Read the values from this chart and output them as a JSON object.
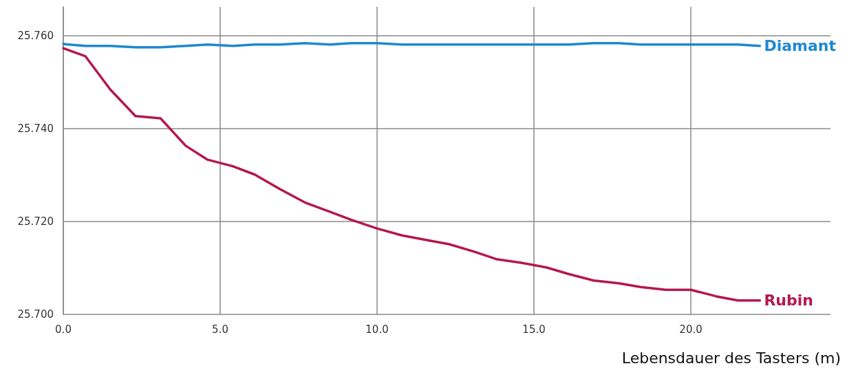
{
  "chart_data": {
    "type": "line",
    "xlabel": "Lebensdauer des Tasters (m)",
    "x": [
      0,
      0.7,
      1.5,
      2.3,
      3.1,
      3.9,
      4.6,
      5.4,
      6.1,
      6.9,
      7.7,
      8.5,
      9.2,
      10.0,
      10.8,
      11.5,
      12.3,
      13.1,
      13.8,
      14.6,
      15.4,
      16.1,
      16.9,
      17.7,
      18.4,
      19.2,
      20.0,
      20.8,
      21.5,
      22.2
    ],
    "series": [
      {
        "name": "Diamant",
        "color": "#1e88d0",
        "values": [
          25.7582,
          25.7578,
          25.7578,
          25.7575,
          25.7575,
          25.7578,
          25.7581,
          25.7578,
          25.7581,
          25.7581,
          25.7584,
          25.7581,
          25.7584,
          25.7584,
          25.7581,
          25.7581,
          25.7581,
          25.7581,
          25.7581,
          25.7581,
          25.7581,
          25.7581,
          25.7584,
          25.7584,
          25.7581,
          25.7581,
          25.7581,
          25.7581,
          25.7581,
          25.7578
        ]
      },
      {
        "name": "Rubin",
        "color": "#b5174f",
        "values": [
          25.7573,
          25.7556,
          25.7484,
          25.7427,
          25.7422,
          25.7363,
          25.7333,
          25.7319,
          25.7301,
          25.727,
          25.7241,
          25.7221,
          25.7203,
          25.7185,
          25.717,
          25.7161,
          25.7151,
          25.7135,
          25.7119,
          25.7111,
          25.7101,
          25.7087,
          25.7073,
          25.7067,
          25.7059,
          25.7053,
          25.7053,
          25.7039,
          25.703,
          25.703
        ]
      }
    ],
    "xlim": [
      0,
      24.45
    ],
    "xticks": [
      {
        "value": 0,
        "label": "0.0"
      },
      {
        "value": 5,
        "label": "5.0"
      },
      {
        "value": 10,
        "label": "10.0"
      },
      {
        "value": 15,
        "label": "15.0"
      },
      {
        "value": 20,
        "label": "20.0"
      }
    ],
    "ylim": [
      25.7,
      25.7662
    ],
    "yticks": [
      {
        "value": 25.7,
        "label": "25.700"
      },
      {
        "value": 25.72,
        "label": "25.720"
      },
      {
        "value": 25.74,
        "label": "25.740"
      },
      {
        "value": 25.76,
        "label": "25.760"
      }
    ],
    "grid": true,
    "legend": false,
    "marker": "none",
    "line_style": "solid"
  }
}
